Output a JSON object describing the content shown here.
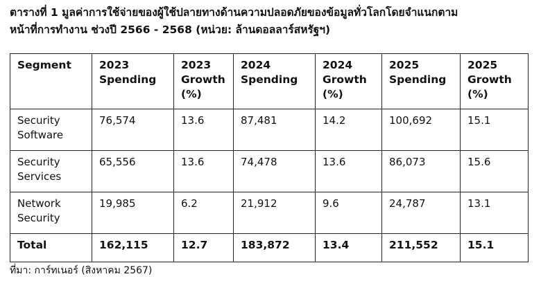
{
  "title_line1": "ตารางที่ 1 มูลค่าการใช้จ่ายของผู้ใช้ปลายทางด้านความปลอดภัยของข้อมูลทั่วโลกโดยจำแนกตาม",
  "title_line2": "หน้าที่การทำงาน ช่วงปี 2566 - 2568 (หน่วย: ล้านดอลลาร์สหรัฐฯ)",
  "table": {
    "headers": [
      [
        "Segment"
      ],
      [
        "2023",
        "Spending"
      ],
      [
        "2023",
        "Growth",
        "(%)"
      ],
      [
        "2024",
        "Spending"
      ],
      [
        "2024",
        "Growth",
        "(%)"
      ],
      [
        "2025",
        "Spending"
      ],
      [
        "2025",
        "Growth",
        "(%)"
      ]
    ],
    "rows": [
      {
        "segment": [
          "Security",
          "Software"
        ],
        "values": [
          "76,574",
          "13.6",
          "87,481",
          "14.2",
          "100,692",
          "15.1"
        ]
      },
      {
        "segment": [
          "Security",
          "Services"
        ],
        "values": [
          "65,556",
          "13.6",
          "74,478",
          "13.6",
          "86,073",
          "15.6"
        ]
      },
      {
        "segment": [
          "Network",
          "Security"
        ],
        "values": [
          "19,985",
          "6.2",
          "21,912",
          "9.6",
          "24,787",
          "13.1"
        ]
      }
    ],
    "total": {
      "segment": "Total",
      "values": [
        "162,115",
        "12.7",
        "183,872",
        "13.4",
        "211,552",
        "15.1"
      ]
    }
  },
  "source": "ที่มา: การ์ทเนอร์ (สิงหาคม 2567)"
}
